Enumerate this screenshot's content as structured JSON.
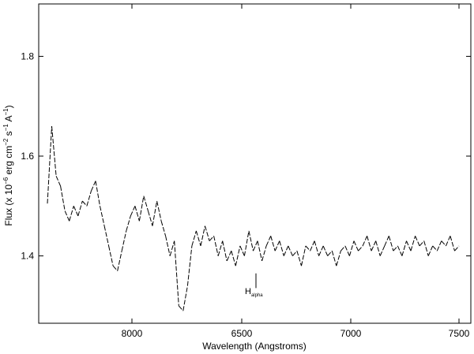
{
  "chart_data": {
    "type": "line",
    "title": "",
    "xlabel": "Wavelength (Angstroms)",
    "ylabel": {
      "prefix": "Flux (x 10",
      "exp1": "−6",
      "mid": " erg cm",
      "exp2": "−2",
      "s": " s",
      "exp3": "−1",
      "a": " A",
      "exp4": "−1",
      "suffix": ")"
    },
    "xlim": [
      7580,
      7620
    ],
    "ylim": [
      1.265,
      1.905
    ],
    "xaxis_range": [
      7595,
      7615
    ],
    "xticks": [
      8000,
      6500,
      7000,
      7500
    ],
    "xtick_labels": [
      "8000",
      "6500",
      "7000",
      "7500"
    ],
    "yticks": [
      1.4,
      1.6,
      1.8
    ],
    "ytick_labels": [
      "1.4",
      "1.6",
      "1.8"
    ],
    "grid": false,
    "line_style": "dashed",
    "annotation": {
      "main": "H",
      "sub": "alpha",
      "x": 6562.8,
      "y_top": 1.365,
      "y_bottom": 1.345
    },
    "series": [
      {
        "values": [
          [
            7610,
            1.505
          ],
          [
            7617,
            1.66
          ],
          [
            7622,
            1.56
          ],
          [
            7630,
            1.54
          ],
          [
            7640,
            1.49
          ],
          [
            7650,
            1.47
          ],
          [
            7660,
            1.5
          ],
          [
            7670,
            1.48
          ],
          [
            7680,
            1.51
          ],
          [
            7690,
            1.5
          ],
          [
            7700,
            1.53
          ],
          [
            7707,
            1.55
          ],
          [
            7715,
            1.5
          ],
          [
            7722,
            1.46
          ],
          [
            7730,
            1.42
          ],
          [
            7740,
            1.38
          ],
          [
            7750,
            1.37
          ],
          [
            7760,
            1.41
          ],
          [
            7770,
            1.45
          ],
          [
            7780,
            1.48
          ],
          [
            7790,
            1.5
          ],
          [
            7800,
            1.47
          ],
          [
            7807,
            1.52
          ],
          [
            7815,
            1.49
          ],
          [
            7822,
            1.46
          ],
          [
            7830,
            1.51
          ],
          [
            7840,
            1.47
          ],
          [
            7850,
            1.44
          ],
          [
            7860,
            1.4
          ],
          [
            7870,
            1.43
          ],
          [
            7877,
            1.3
          ],
          [
            7882,
            1.29
          ],
          [
            7888,
            1.34
          ],
          [
            7895,
            1.42
          ],
          [
            7902,
            1.45
          ],
          [
            7910,
            1.42
          ],
          [
            7920,
            1.46
          ],
          [
            7930,
            1.43
          ],
          [
            7940,
            1.44
          ],
          [
            7950,
            1.4
          ],
          [
            7960,
            1.43
          ],
          [
            7970,
            1.39
          ],
          [
            7980,
            1.41
          ],
          [
            7990,
            1.38
          ],
          [
            8000,
            1.42
          ],
          [
            8010,
            1.4
          ],
          [
            8020,
            1.45
          ],
          [
            8030,
            1.41
          ],
          [
            8040,
            1.43
          ],
          [
            8050,
            1.39
          ],
          [
            8060,
            1.42
          ],
          [
            8070,
            1.44
          ],
          [
            8080,
            1.41
          ],
          [
            8090,
            1.43
          ],
          [
            8100,
            1.4
          ],
          [
            8110,
            1.42
          ],
          [
            8120,
            1.4
          ],
          [
            8130,
            1.41
          ],
          [
            8140,
            1.38
          ],
          [
            8150,
            1.42
          ],
          [
            8160,
            1.41
          ],
          [
            8170,
            1.43
          ],
          [
            8180,
            1.4
          ],
          [
            8190,
            1.42
          ],
          [
            8200,
            1.4
          ],
          [
            8210,
            1.41
          ],
          [
            8220,
            1.38
          ],
          [
            8230,
            1.41
          ],
          [
            8240,
            1.42
          ],
          [
            8250,
            1.4
          ],
          [
            8260,
            1.43
          ],
          [
            8270,
            1.41
          ],
          [
            8280,
            1.42
          ],
          [
            8290,
            1.44
          ],
          [
            8300,
            1.41
          ],
          [
            8310,
            1.43
          ],
          [
            8320,
            1.4
          ],
          [
            8330,
            1.42
          ],
          [
            8340,
            1.44
          ],
          [
            8350,
            1.41
          ],
          [
            8360,
            1.42
          ],
          [
            8370,
            1.4
          ],
          [
            8380,
            1.43
          ],
          [
            8390,
            1.41
          ],
          [
            8400,
            1.44
          ],
          [
            8410,
            1.42
          ],
          [
            8420,
            1.43
          ],
          [
            8430,
            1.4
          ],
          [
            8440,
            1.42
          ],
          [
            8450,
            1.41
          ],
          [
            8460,
            1.43
          ],
          [
            8470,
            1.42
          ],
          [
            8480,
            1.44
          ],
          [
            8490,
            1.41
          ],
          [
            8500,
            1.42
          ]
        ]
      }
    ]
  }
}
